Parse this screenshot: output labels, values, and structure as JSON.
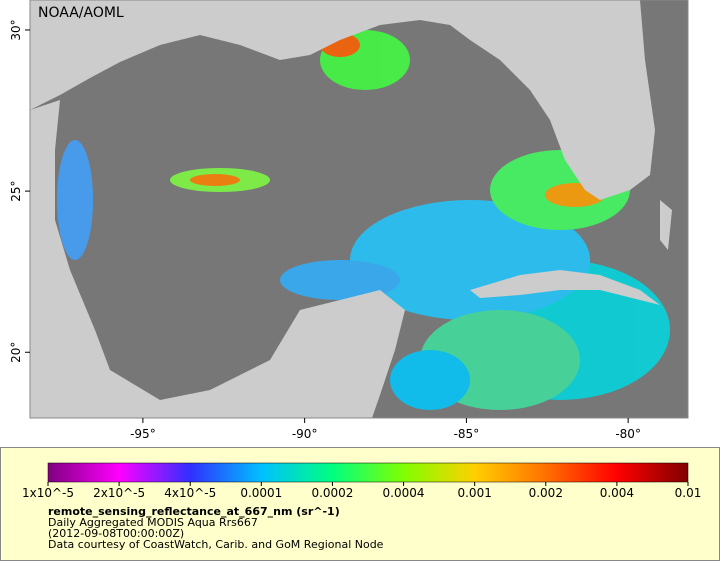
{
  "map": {
    "credit": "NOAA/AOML",
    "lon_range": [
      -98.49,
      -78.15
    ],
    "lat_range": [
      17.96,
      30.93
    ],
    "lon_ticks": [
      {
        "value": -95,
        "label": "-95°"
      },
      {
        "value": -90,
        "label": "-90°"
      },
      {
        "value": -85,
        "label": "-85°"
      },
      {
        "value": -80,
        "label": "-80°"
      }
    ],
    "lat_ticks": [
      {
        "value": 30,
        "label": "30°"
      },
      {
        "value": 25,
        "label": "25°"
      },
      {
        "value": 20,
        "label": "20°"
      }
    ]
  },
  "legend": {
    "variable": "remote_sensing_reflectance_at_667_nm (sr^-1)",
    "description": "Daily Aggregated MODIS Aqua Rrs667",
    "time": "(2012-09-08T00:00:00Z)",
    "courtesy": "Data courtesy of CoastWatch, Carib. and GoM Regional Node",
    "colorbar_colors": [
      "#800080",
      "#ff00ff",
      "#3030ff",
      "#00c0ff",
      "#00ff80",
      "#80ff00",
      "#ffd000",
      "#ff7000",
      "#ff0000",
      "#800000"
    ],
    "colorbar_ticks": [
      {
        "value": 1e-05,
        "label": "1x10^-5"
      },
      {
        "value": 2e-05,
        "label": "2x10^-5"
      },
      {
        "value": 4e-05,
        "label": "4x10^-5"
      },
      {
        "value": 0.0001,
        "label": "0.0001"
      },
      {
        "value": 0.0002,
        "label": "0.0002"
      },
      {
        "value": 0.0004,
        "label": "0.0004"
      },
      {
        "value": 0.001,
        "label": "0.001"
      },
      {
        "value": 0.002,
        "label": "0.002"
      },
      {
        "value": 0.004,
        "label": "0.004"
      },
      {
        "value": 0.01,
        "label": "0.01"
      }
    ]
  }
}
